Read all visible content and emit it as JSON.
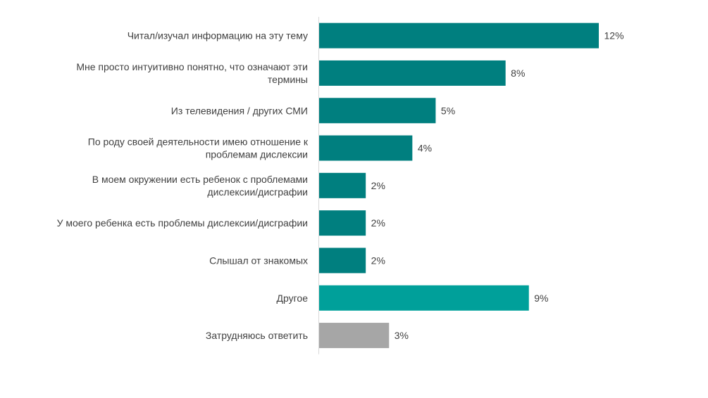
{
  "chart_data": {
    "type": "bar",
    "orientation": "horizontal",
    "title": "",
    "xlabel": "",
    "ylabel": "",
    "grid": false,
    "legend": "none",
    "xlim": [
      0,
      12
    ],
    "categories": [
      "Читал/изучал информацию на эту тему",
      "Мне просто интуитивно понятно, что означают эти термины",
      "Из телевидения / других СМИ",
      "По роду своей деятельности имею отношение к проблемам дислексии",
      "В моем окружении есть ребенок с проблемами дислексии/дисграфии",
      "У моего ребенка есть проблемы дислексии/дисграфии",
      "Слышал от знакомых",
      "Другое",
      "Затрудняюсь ответить"
    ],
    "label_lines": [
      [
        "Читал/изучал информацию на эту тему"
      ],
      [
        "Мне просто интуитивно понятно, что означают эти",
        "термины"
      ],
      [
        "Из телевидения / других СМИ"
      ],
      [
        "По роду своей деятельности имею отношение к",
        "проблемам дислексии"
      ],
      [
        "В моем окружении есть ребенок с проблемами",
        "дислексии/дисграфии"
      ],
      [
        "У моего ребенка есть проблемы дислексии/дисграфии"
      ],
      [
        "Слышал от знакомых"
      ],
      [
        "Другое"
      ],
      [
        "Затрудняюсь ответить"
      ]
    ],
    "values": [
      12,
      8,
      5,
      4,
      2,
      2,
      2,
      9,
      3
    ],
    "value_labels": [
      "12%",
      "8%",
      "5%",
      "4%",
      "2%",
      "2%",
      "2%",
      "9%",
      "3%"
    ],
    "colors": [
      "#007F7F",
      "#007F7F",
      "#007F7F",
      "#007F7F",
      "#007F7F",
      "#007F7F",
      "#007F7F",
      "#00A09A",
      "#A6A6A6"
    ],
    "axis_color": "#D9D9D9",
    "text_color": "#404040"
  }
}
